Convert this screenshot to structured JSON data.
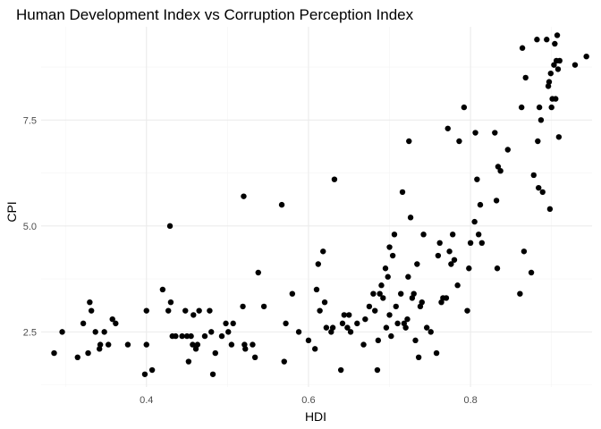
{
  "chart_data": {
    "type": "scatter",
    "title": "Human Development Index vs Corruption Perception Index",
    "xlabel": "HDI",
    "ylabel": "CPI",
    "xlim": [
      0.27,
      0.95
    ],
    "ylim": [
      1.2,
      9.7
    ],
    "x_ticks": [
      0.4,
      0.6,
      0.8
    ],
    "y_ticks": [
      2.5,
      5.0,
      7.5
    ],
    "x_tick_labels": [
      "0.4",
      "0.6",
      "0.8"
    ],
    "y_tick_labels": [
      "2.5",
      "5.0",
      "7.5"
    ],
    "grid": true,
    "legend": "none",
    "point_color": "#000000",
    "points": [
      [
        0.286,
        2.0
      ],
      [
        0.296,
        2.5
      ],
      [
        0.315,
        1.9
      ],
      [
        0.322,
        2.7
      ],
      [
        0.328,
        2.0
      ],
      [
        0.33,
        3.2
      ],
      [
        0.332,
        3.0
      ],
      [
        0.337,
        2.5
      ],
      [
        0.342,
        2.1
      ],
      [
        0.343,
        2.2
      ],
      [
        0.348,
        2.5
      ],
      [
        0.353,
        2.2
      ],
      [
        0.358,
        2.8
      ],
      [
        0.362,
        2.7
      ],
      [
        0.377,
        2.2
      ],
      [
        0.398,
        1.5
      ],
      [
        0.4,
        3.0
      ],
      [
        0.4,
        2.2
      ],
      [
        0.407,
        1.6
      ],
      [
        0.42,
        3.5
      ],
      [
        0.427,
        3.0
      ],
      [
        0.429,
        5.0
      ],
      [
        0.43,
        3.2
      ],
      [
        0.432,
        2.4
      ],
      [
        0.436,
        2.4
      ],
      [
        0.444,
        2.4
      ],
      [
        0.448,
        3.0
      ],
      [
        0.45,
        2.4
      ],
      [
        0.452,
        1.8
      ],
      [
        0.455,
        2.4
      ],
      [
        0.457,
        2.2
      ],
      [
        0.458,
        2.9
      ],
      [
        0.461,
        2.1
      ],
      [
        0.463,
        2.2
      ],
      [
        0.465,
        3.0
      ],
      [
        0.472,
        2.4
      ],
      [
        0.478,
        3.0
      ],
      [
        0.48,
        2.5
      ],
      [
        0.482,
        1.5
      ],
      [
        0.485,
        2.0
      ],
      [
        0.493,
        2.4
      ],
      [
        0.498,
        2.7
      ],
      [
        0.501,
        2.5
      ],
      [
        0.505,
        2.2
      ],
      [
        0.507,
        2.7
      ],
      [
        0.519,
        3.1
      ],
      [
        0.52,
        5.7
      ],
      [
        0.521,
        2.2
      ],
      [
        0.522,
        2.1
      ],
      [
        0.531,
        2.2
      ],
      [
        0.534,
        1.9
      ],
      [
        0.538,
        3.9
      ],
      [
        0.545,
        3.1
      ],
      [
        0.567,
        5.5
      ],
      [
        0.57,
        1.8
      ],
      [
        0.572,
        2.7
      ],
      [
        0.58,
        3.4
      ],
      [
        0.588,
        2.5
      ],
      [
        0.6,
        2.3
      ],
      [
        0.608,
        2.1
      ],
      [
        0.61,
        3.5
      ],
      [
        0.612,
        4.1
      ],
      [
        0.614,
        3.0
      ],
      [
        0.618,
        4.4
      ],
      [
        0.62,
        3.2
      ],
      [
        0.622,
        2.6
      ],
      [
        0.628,
        2.5
      ],
      [
        0.63,
        2.6
      ],
      [
        0.632,
        6.1
      ],
      [
        0.64,
        1.6
      ],
      [
        0.642,
        2.7
      ],
      [
        0.644,
        2.9
      ],
      [
        0.648,
        2.6
      ],
      [
        0.65,
        2.9
      ],
      [
        0.652,
        2.5
      ],
      [
        0.66,
        2.7
      ],
      [
        0.668,
        2.2
      ],
      [
        0.67,
        2.8
      ],
      [
        0.675,
        3.1
      ],
      [
        0.68,
        3.4
      ],
      [
        0.682,
        3.0
      ],
      [
        0.685,
        1.6
      ],
      [
        0.686,
        2.3
      ],
      [
        0.688,
        3.4
      ],
      [
        0.69,
        3.6
      ],
      [
        0.692,
        3.3
      ],
      [
        0.695,
        4.0
      ],
      [
        0.696,
        2.6
      ],
      [
        0.698,
        3.8
      ],
      [
        0.7,
        4.5
      ],
      [
        0.7,
        2.9
      ],
      [
        0.702,
        2.4
      ],
      [
        0.704,
        4.3
      ],
      [
        0.706,
        4.8
      ],
      [
        0.708,
        3.1
      ],
      [
        0.71,
        2.7
      ],
      [
        0.714,
        3.4
      ],
      [
        0.716,
        5.8
      ],
      [
        0.718,
        2.7
      ],
      [
        0.72,
        2.6
      ],
      [
        0.722,
        2.8
      ],
      [
        0.723,
        3.8
      ],
      [
        0.724,
        7.0
      ],
      [
        0.726,
        5.2
      ],
      [
        0.728,
        3.3
      ],
      [
        0.73,
        3.4
      ],
      [
        0.732,
        2.3
      ],
      [
        0.734,
        4.1
      ],
      [
        0.736,
        1.9
      ],
      [
        0.738,
        3.1
      ],
      [
        0.74,
        3.2
      ],
      [
        0.742,
        4.8
      ],
      [
        0.746,
        2.6
      ],
      [
        0.751,
        2.5
      ],
      [
        0.758,
        2.0
      ],
      [
        0.76,
        4.3
      ],
      [
        0.762,
        4.6
      ],
      [
        0.764,
        3.2
      ],
      [
        0.766,
        3.3
      ],
      [
        0.77,
        3.3
      ],
      [
        0.772,
        7.3
      ],
      [
        0.774,
        4.4
      ],
      [
        0.776,
        4.1
      ],
      [
        0.778,
        4.8
      ],
      [
        0.78,
        4.2
      ],
      [
        0.784,
        3.6
      ],
      [
        0.786,
        7.0
      ],
      [
        0.792,
        7.8
      ],
      [
        0.796,
        3.0
      ],
      [
        0.798,
        4.0
      ],
      [
        0.8,
        4.6
      ],
      [
        0.805,
        5.1
      ],
      [
        0.806,
        7.2
      ],
      [
        0.808,
        6.1
      ],
      [
        0.81,
        4.8
      ],
      [
        0.812,
        5.5
      ],
      [
        0.814,
        4.6
      ],
      [
        0.83,
        7.2
      ],
      [
        0.832,
        5.6
      ],
      [
        0.833,
        4.0
      ],
      [
        0.834,
        6.4
      ],
      [
        0.837,
        6.3
      ],
      [
        0.846,
        6.8
      ],
      [
        0.861,
        3.4
      ],
      [
        0.863,
        7.8
      ],
      [
        0.864,
        9.2
      ],
      [
        0.866,
        4.4
      ],
      [
        0.868,
        8.5
      ],
      [
        0.875,
        3.9
      ],
      [
        0.878,
        6.2
      ],
      [
        0.882,
        9.4
      ],
      [
        0.883,
        7.0
      ],
      [
        0.884,
        5.9
      ],
      [
        0.885,
        7.8
      ],
      [
        0.887,
        7.5
      ],
      [
        0.889,
        5.8
      ],
      [
        0.894,
        9.4
      ],
      [
        0.896,
        8.3
      ],
      [
        0.897,
        8.4
      ],
      [
        0.898,
        5.4
      ],
      [
        0.899,
        8.6
      ],
      [
        0.9,
        7.8
      ],
      [
        0.901,
        8.0
      ],
      [
        0.903,
        8.8
      ],
      [
        0.904,
        9.3
      ],
      [
        0.905,
        8.0
      ],
      [
        0.906,
        8.9
      ],
      [
        0.907,
        9.5
      ],
      [
        0.908,
        8.7
      ],
      [
        0.909,
        7.1
      ],
      [
        0.91,
        8.9
      ],
      [
        0.929,
        8.8
      ],
      [
        0.943,
        9.0
      ]
    ]
  }
}
